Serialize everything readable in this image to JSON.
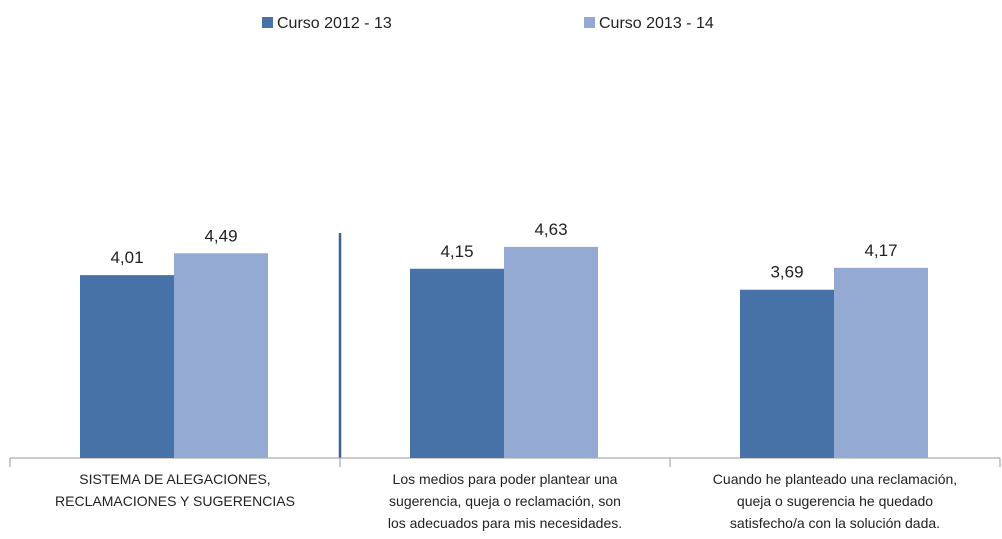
{
  "chart_data": {
    "type": "bar",
    "categories": [
      "SISTEMA DE ALEGACIONES,\nRECLAMACIONES Y SUGERENCIAS",
      "Los medios para poder plantear una\nsugerencia, queja o reclamación, son\nlos adecuados para mis necesidades.",
      "Cuando he planteado una reclamación,\nqueja o sugerencia he quedado\nsatisfecho/a con la solución dada."
    ],
    "series": [
      {
        "name": "Curso 2012 - 13",
        "color": "#4672a8",
        "values": [
          4.01,
          4.15,
          3.69
        ],
        "value_labels": [
          "4,01",
          "4,15",
          "3,69"
        ]
      },
      {
        "name": "Curso 2013 - 14",
        "color": "#94aad2",
        "values": [
          4.49,
          4.63,
          4.17
        ],
        "value_labels": [
          "4,49",
          "4,63",
          "4,17"
        ]
      }
    ],
    "ylim": [
      0,
      10
    ],
    "legend": "top"
  }
}
